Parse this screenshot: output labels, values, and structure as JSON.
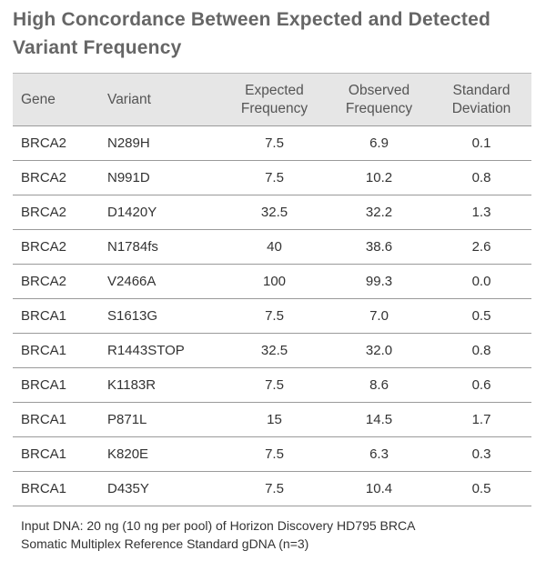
{
  "title": {
    "line1": "High Concordance Between Expected and Detected",
    "line2": "Variant Frequency"
  },
  "table": {
    "headers": {
      "gene": "Gene",
      "variant": "Variant",
      "expected": [
        "Expected",
        "Frequency"
      ],
      "observed": [
        "Observed",
        "Frequency"
      ],
      "sd": [
        "Standard",
        "Deviation"
      ]
    },
    "rows": [
      {
        "gene": "BRCA2",
        "variant": "N289H",
        "expected": "7.5",
        "observed": "6.9",
        "sd": "0.1"
      },
      {
        "gene": "BRCA2",
        "variant": "N991D",
        "expected": "7.5",
        "observed": "10.2",
        "sd": "0.8"
      },
      {
        "gene": "BRCA2",
        "variant": "D1420Y",
        "expected": "32.5",
        "observed": "32.2",
        "sd": "1.3"
      },
      {
        "gene": "BRCA2",
        "variant": "N1784fs",
        "expected": "40",
        "observed": "38.6",
        "sd": "2.6"
      },
      {
        "gene": "BRCA2",
        "variant": "V2466A",
        "expected": "100",
        "observed": "99.3",
        "sd": "0.0"
      },
      {
        "gene": "BRCA1",
        "variant": "S1613G",
        "expected": "7.5",
        "observed": "7.0",
        "sd": "0.5"
      },
      {
        "gene": "BRCA1",
        "variant": "R1443STOP",
        "expected": "32.5",
        "observed": "32.0",
        "sd": "0.8"
      },
      {
        "gene": "BRCA1",
        "variant": "K1183R",
        "expected": "7.5",
        "observed": "8.6",
        "sd": "0.6"
      },
      {
        "gene": "BRCA1",
        "variant": "P871L",
        "expected": "15",
        "observed": "14.5",
        "sd": "1.7"
      },
      {
        "gene": "BRCA1",
        "variant": "K820E",
        "expected": "7.5",
        "observed": "6.3",
        "sd": "0.3"
      },
      {
        "gene": "BRCA1",
        "variant": "D435Y",
        "expected": "7.5",
        "observed": "10.4",
        "sd": "0.5"
      }
    ],
    "footnote": {
      "line1": "Input DNA: 20 ng (10 ng per pool) of Horizon Discovery HD795 BRCA",
      "line2": "Somatic Multiplex Reference Standard gDNA (n=3)"
    }
  },
  "colors": {
    "title": "#666666",
    "header_bg": "#e6e6e6",
    "rule": "#9a9a9a",
    "text": "#333333"
  }
}
